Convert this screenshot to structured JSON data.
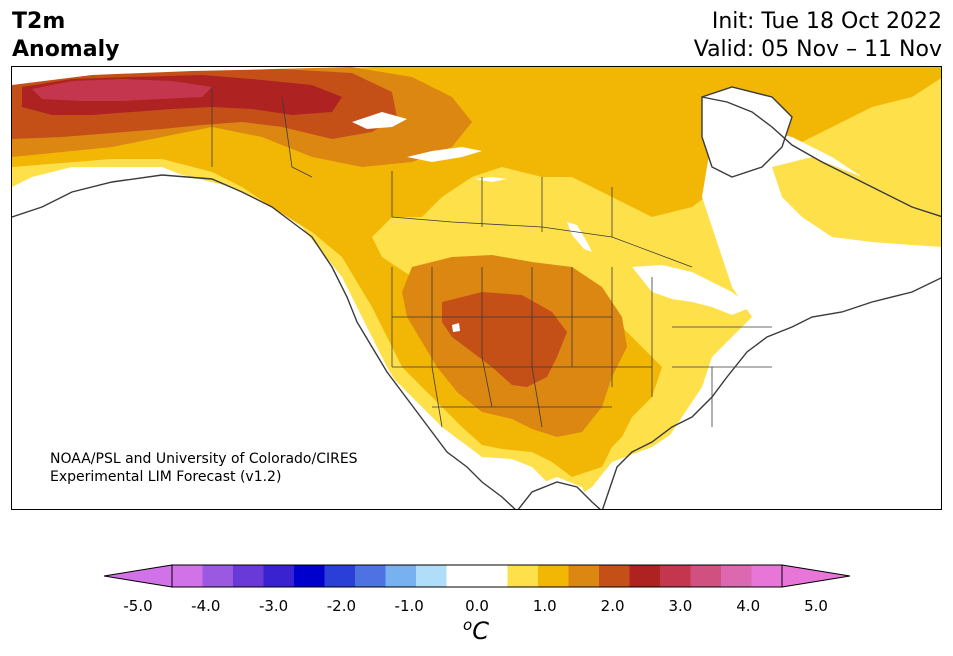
{
  "header": {
    "title_line1": "T2m",
    "title_line2": "Anomaly",
    "init": "Init: Tue 18 Oct 2022",
    "valid": "Valid: 05 Nov – 11 Nov"
  },
  "credit": {
    "line1": "NOAA/PSL and University of Colorado/CIRES",
    "line2": "Experimental LIM Forecast (v1.2)"
  },
  "colorbar": {
    "colors": [
      "#d272e8",
      "#9b58e0",
      "#6a3ad8",
      "#3a22d0",
      "#0000cc",
      "#2a3ed8",
      "#4e72e2",
      "#78b0f0",
      "#b0def8",
      "#ffffff",
      "#ffffff",
      "#fde04a",
      "#f2b705",
      "#dc8712",
      "#c45018",
      "#ae2222",
      "#c4364e",
      "#d05080",
      "#dc68b0",
      "#e876d8"
    ],
    "min_extend_color": "#d272e8",
    "max_extend_color": "#e876d8",
    "tick_labels": [
      "-5.0",
      "-4.0",
      "-3.0",
      "-2.0",
      "-1.0",
      "0.0",
      "1.0",
      "2.0",
      "3.0",
      "4.0",
      "5.0"
    ],
    "units_base": "C",
    "units_sup": "o"
  },
  "anomaly_colors": {
    "weak_warm": "#fde04a",
    "moderate_warm": "#f2b705",
    "warm": "#dc8712",
    "strong_warm": "#c45018",
    "very_strong_warm": "#ae2222",
    "extreme_warm": "#c4364e"
  }
}
